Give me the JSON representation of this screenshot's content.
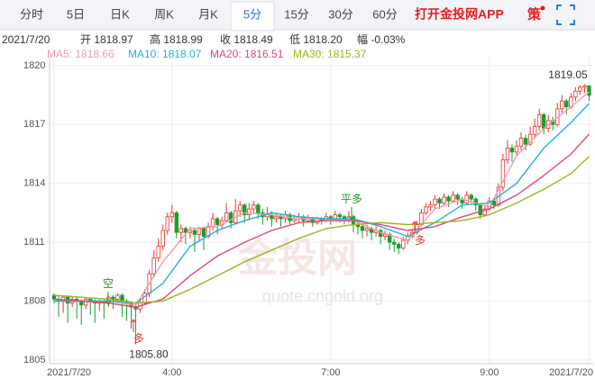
{
  "tabs": [
    "分时",
    "5日",
    "日K",
    "周K",
    "月K",
    "5分",
    "15分",
    "30分",
    "60分"
  ],
  "active_tab": 5,
  "app_link": "打开金投网APP",
  "strategy": "策",
  "info": [
    "2021/7/20",
    "开 1818.97",
    "高 1818.99",
    "收 1818.49",
    "低 1818.20",
    "幅 -0.03%"
  ],
  "chart_data": {
    "type": "candlestick",
    "up_color": "#e8342c",
    "down_color": "#1a9e2a",
    "grid": true,
    "xlim": [
      -1,
      118.9
    ],
    "xticks": [
      {
        "value": 0,
        "label": "2021/7/20"
      },
      {
        "value": 26,
        "label": "4:00"
      },
      {
        "value": 61,
        "label": "7:00"
      },
      {
        "value": 96,
        "label": "9:00"
      },
      {
        "value": 118,
        "label": "2021/7/20"
      }
    ],
    "ylim": [
      1804.63,
      1820.5
    ],
    "yticks": [
      1805,
      1808,
      1811,
      1814,
      1817,
      1820
    ],
    "x": [
      0,
      1,
      2,
      3,
      4,
      5,
      6,
      7,
      8,
      9,
      10,
      11,
      12,
      13,
      14,
      15,
      16,
      17,
      18,
      19,
      20,
      21,
      22,
      23,
      24,
      25,
      26,
      27,
      28,
      29,
      30,
      31,
      32,
      33,
      34,
      35,
      36,
      37,
      38,
      39,
      40,
      41,
      42,
      43,
      44,
      45,
      46,
      47,
      48,
      49,
      50,
      51,
      52,
      53,
      54,
      55,
      56,
      57,
      58,
      59,
      60,
      61,
      62,
      63,
      64,
      65,
      66,
      67,
      68,
      69,
      70,
      71,
      72,
      73,
      74,
      75,
      76,
      77,
      78,
      79,
      80,
      81,
      82,
      83,
      84,
      85,
      86,
      87,
      88,
      89,
      90,
      91,
      92,
      93,
      94,
      95,
      96,
      97,
      98,
      99,
      100,
      101,
      102,
      103,
      104,
      105,
      106,
      107,
      108,
      109,
      110,
      111,
      112,
      113,
      114,
      115,
      116,
      117,
      118
    ],
    "open": [
      1808.3,
      1808.1,
      1808.0,
      1808.2,
      1807.9,
      1808.1,
      1808.0,
      1807.8,
      1808.1,
      1808.0,
      1807.9,
      1808.0,
      1807.9,
      1808.2,
      1808.1,
      1808.3,
      1808.0,
      1807.9,
      1807.7,
      1807.6,
      1807.9,
      1808.4,
      1809.4,
      1810.2,
      1810.8,
      1811.6,
      1812.3,
      1812.5,
      1811.5,
      1811.7,
      1811.5,
      1811.6,
      1811.4,
      1811.7,
      1811.3,
      1811.8,
      1812.2,
      1811.9,
      1812.1,
      1812.5,
      1812.0,
      1812.6,
      1812.9,
      1812.4,
      1812.7,
      1812.9,
      1812.5,
      1812.3,
      1812.4,
      1812.2,
      1812.3,
      1812.2,
      1812.4,
      1812.1,
      1812.2,
      1812.3,
      1812.1,
      1812.2,
      1812.0,
      1812.2,
      1812.1,
      1812.3,
      1812.2,
      1812.4,
      1812.3,
      1812.1,
      1812.3,
      1811.9,
      1811.8,
      1811.6,
      1811.7,
      1811.5,
      1811.6,
      1811.3,
      1811.4,
      1811.0,
      1810.9,
      1810.7,
      1811.1,
      1811.3,
      1811.5,
      1811.9,
      1812.5,
      1812.8,
      1812.9,
      1813.2,
      1813.0,
      1813.3,
      1813.1,
      1813.4,
      1813.2,
      1813.0,
      1813.4,
      1813.2,
      1812.9,
      1812.4,
      1812.7,
      1813.1,
      1812.9,
      1813.8,
      1815.2,
      1815.8,
      1815.6,
      1815.9,
      1816.3,
      1816.0,
      1816.5,
      1816.9,
      1817.5,
      1816.8,
      1817.2,
      1817.0,
      1817.8,
      1818.2,
      1817.9,
      1818.4,
      1818.7,
      1818.9,
      1818.97
    ],
    "high": [
      1808.4,
      1808.3,
      1808.3,
      1808.3,
      1808.2,
      1808.2,
      1808.1,
      1808.2,
      1808.2,
      1808.1,
      1808.1,
      1808.1,
      1808.3,
      1808.3,
      1808.4,
      1808.4,
      1808.1,
      1808.0,
      1807.9,
      1808.1,
      1808.6,
      1809.6,
      1810.6,
      1811.2,
      1811.9,
      1812.5,
      1812.9,
      1812.6,
      1811.9,
      1811.8,
      1811.8,
      1811.7,
      1811.8,
      1811.8,
      1812.0,
      1812.5,
      1812.3,
      1812.3,
      1813.0,
      1812.6,
      1813.2,
      1813.1,
      1813.0,
      1813.0,
      1813.1,
      1813.0,
      1812.7,
      1812.8,
      1812.6,
      1812.5,
      1812.4,
      1812.6,
      1812.5,
      1812.4,
      1812.5,
      1812.4,
      1812.4,
      1812.3,
      1812.3,
      1812.3,
      1812.5,
      1812.4,
      1812.6,
      1812.5,
      1812.4,
      1812.6,
      1812.4,
      1812.0,
      1811.9,
      1811.9,
      1811.8,
      1811.8,
      1811.7,
      1811.6,
      1811.5,
      1811.2,
      1811.0,
      1811.3,
      1811.5,
      1811.7,
      1812.1,
      1812.7,
      1813.0,
      1813.1,
      1813.4,
      1813.3,
      1813.5,
      1813.4,
      1813.6,
      1813.5,
      1813.3,
      1813.6,
      1813.5,
      1813.3,
      1813.0,
      1812.9,
      1813.3,
      1813.2,
      1814.0,
      1815.5,
      1816.2,
      1816.0,
      1816.2,
      1816.6,
      1816.5,
      1816.9,
      1817.3,
      1817.8,
      1817.6,
      1817.5,
      1817.4,
      1818.1,
      1818.5,
      1818.3,
      1818.6,
      1818.9,
      1819.0,
      1819.05,
      1818.99
    ],
    "low": [
      1807.9,
      1807.2,
      1807.4,
      1806.9,
      1807.7,
      1807.1,
      1806.8,
      1807.6,
      1807.3,
      1806.9,
      1807.5,
      1807.1,
      1807.7,
      1807.6,
      1807.9,
      1807.2,
      1807.0,
      1806.6,
      1805.8,
      1807.4,
      1807.8,
      1808.2,
      1809.2,
      1810.0,
      1810.6,
      1811.4,
      1812.0,
      1811.2,
      1811.0,
      1810.9,
      1811.2,
      1810.5,
      1811.1,
      1810.6,
      1811.2,
      1811.6,
      1811.4,
      1811.7,
      1812.0,
      1811.7,
      1811.9,
      1812.3,
      1812.0,
      1812.2,
      1812.5,
      1812.2,
      1811.9,
      1812.1,
      1811.8,
      1812.0,
      1811.8,
      1812.0,
      1811.9,
      1812.0,
      1812.0,
      1811.8,
      1812.0,
      1811.8,
      1811.9,
      1811.9,
      1812.0,
      1811.9,
      1812.1,
      1812.0,
      1811.9,
      1812.0,
      1811.5,
      1811.4,
      1811.2,
      1811.3,
      1811.1,
      1811.3,
      1810.9,
      1811.1,
      1810.6,
      1810.5,
      1810.4,
      1810.6,
      1810.9,
      1811.2,
      1811.4,
      1811.8,
      1812.4,
      1812.6,
      1812.7,
      1812.7,
      1812.9,
      1812.8,
      1813.0,
      1812.9,
      1812.7,
      1812.9,
      1813.0,
      1812.6,
      1812.2,
      1812.3,
      1812.6,
      1812.7,
      1812.8,
      1813.6,
      1815.0,
      1815.1,
      1815.4,
      1815.7,
      1815.7,
      1815.9,
      1816.3,
      1816.7,
      1816.5,
      1816.6,
      1816.7,
      1816.9,
      1817.6,
      1817.5,
      1817.8,
      1818.2,
      1818.5,
      1818.6,
      1818.2
    ],
    "close": [
      1808.1,
      1808.0,
      1808.2,
      1807.9,
      1808.1,
      1808.0,
      1807.8,
      1808.1,
      1808.0,
      1807.9,
      1808.0,
      1807.9,
      1808.2,
      1808.1,
      1808.3,
      1808.0,
      1807.9,
      1807.7,
      1807.6,
      1807.9,
      1808.4,
      1809.4,
      1810.2,
      1810.8,
      1811.6,
      1812.3,
      1812.5,
      1811.5,
      1811.7,
      1811.5,
      1811.6,
      1811.4,
      1811.7,
      1811.3,
      1811.8,
      1812.2,
      1811.9,
      1812.1,
      1812.5,
      1812.0,
      1812.6,
      1812.9,
      1812.4,
      1812.7,
      1812.9,
      1812.5,
      1812.3,
      1812.4,
      1812.2,
      1812.3,
      1812.2,
      1812.4,
      1812.1,
      1812.2,
      1812.3,
      1812.1,
      1812.2,
      1812.0,
      1812.2,
      1812.1,
      1812.3,
      1812.2,
      1812.4,
      1812.3,
      1812.1,
      1812.3,
      1811.9,
      1811.8,
      1811.6,
      1811.7,
      1811.5,
      1811.6,
      1811.3,
      1811.4,
      1811.0,
      1810.9,
      1810.7,
      1811.1,
      1811.3,
      1811.5,
      1811.9,
      1812.5,
      1812.8,
      1812.9,
      1813.2,
      1813.0,
      1813.3,
      1813.1,
      1813.4,
      1813.2,
      1813.0,
      1813.4,
      1813.2,
      1812.9,
      1812.4,
      1812.7,
      1813.1,
      1812.9,
      1813.8,
      1815.2,
      1815.8,
      1815.6,
      1815.9,
      1816.3,
      1816.0,
      1816.5,
      1816.9,
      1817.5,
      1816.8,
      1817.2,
      1817.0,
      1817.8,
      1818.2,
      1817.9,
      1818.4,
      1818.7,
      1818.9,
      1818.97,
      1818.49
    ],
    "series": [
      {
        "name": "MA5: 1818.66",
        "color": "#f29bb4",
        "x": [
          0,
          6,
          12,
          18,
          24,
          30,
          36,
          42,
          48,
          54,
          60,
          66,
          72,
          78,
          84,
          90,
          96,
          102,
          108,
          114,
          118
        ],
        "values": [
          1808.1,
          1808.0,
          1808.0,
          1807.8,
          1810.0,
          1811.7,
          1811.8,
          1812.5,
          1812.4,
          1812.2,
          1812.2,
          1812.1,
          1811.5,
          1811.1,
          1812.7,
          1813.2,
          1812.8,
          1815.4,
          1816.8,
          1817.9,
          1818.66
        ]
      },
      {
        "name": "MA10: 1818.07",
        "color": "#1fb3d6",
        "x": [
          0,
          6,
          12,
          18,
          24,
          30,
          36,
          42,
          48,
          54,
          60,
          66,
          72,
          78,
          84,
          90,
          96,
          102,
          108,
          114,
          118
        ],
        "values": [
          1808.0,
          1808.0,
          1808.0,
          1807.9,
          1808.9,
          1810.8,
          1811.6,
          1812.1,
          1812.5,
          1812.3,
          1812.2,
          1812.2,
          1811.8,
          1811.3,
          1812.0,
          1812.9,
          1813.0,
          1814.0,
          1815.8,
          1817.1,
          1818.07
        ]
      },
      {
        "name": "MA20: 1816.51",
        "color": "#e0467a",
        "x": [
          0,
          6,
          12,
          18,
          24,
          30,
          36,
          42,
          48,
          54,
          60,
          66,
          72,
          78,
          84,
          90,
          96,
          102,
          108,
          114,
          118
        ],
        "values": [
          1808.1,
          1808.0,
          1807.9,
          1807.7,
          1808.1,
          1809.3,
          1810.3,
          1811.0,
          1811.6,
          1812.0,
          1812.1,
          1812.1,
          1811.9,
          1811.6,
          1811.8,
          1812.3,
          1812.7,
          1813.4,
          1814.4,
          1815.5,
          1816.51
        ]
      },
      {
        "name": "MA30: 1815.37",
        "color": "#9db51c",
        "x": [
          0,
          6,
          12,
          18,
          24,
          30,
          36,
          42,
          48,
          54,
          60,
          66,
          72,
          78,
          84,
          90,
          96,
          102,
          108,
          114,
          118
        ],
        "values": [
          1808.3,
          1808.2,
          1808.1,
          1807.9,
          1808.0,
          1808.6,
          1809.3,
          1810.0,
          1810.6,
          1811.2,
          1811.7,
          1811.9,
          1812.0,
          1811.9,
          1812.0,
          1812.1,
          1812.4,
          1813.0,
          1813.7,
          1814.5,
          1815.37
        ]
      }
    ],
    "high_label": 1819.05,
    "low_label": {
      "value": 1805.8,
      "label": "1805.80"
    },
    "annotations": [
      "空",
      "多",
      "平多",
      "多"
    ],
    "watermark": [
      "金投网",
      "quote.cngold.org"
    ]
  }
}
